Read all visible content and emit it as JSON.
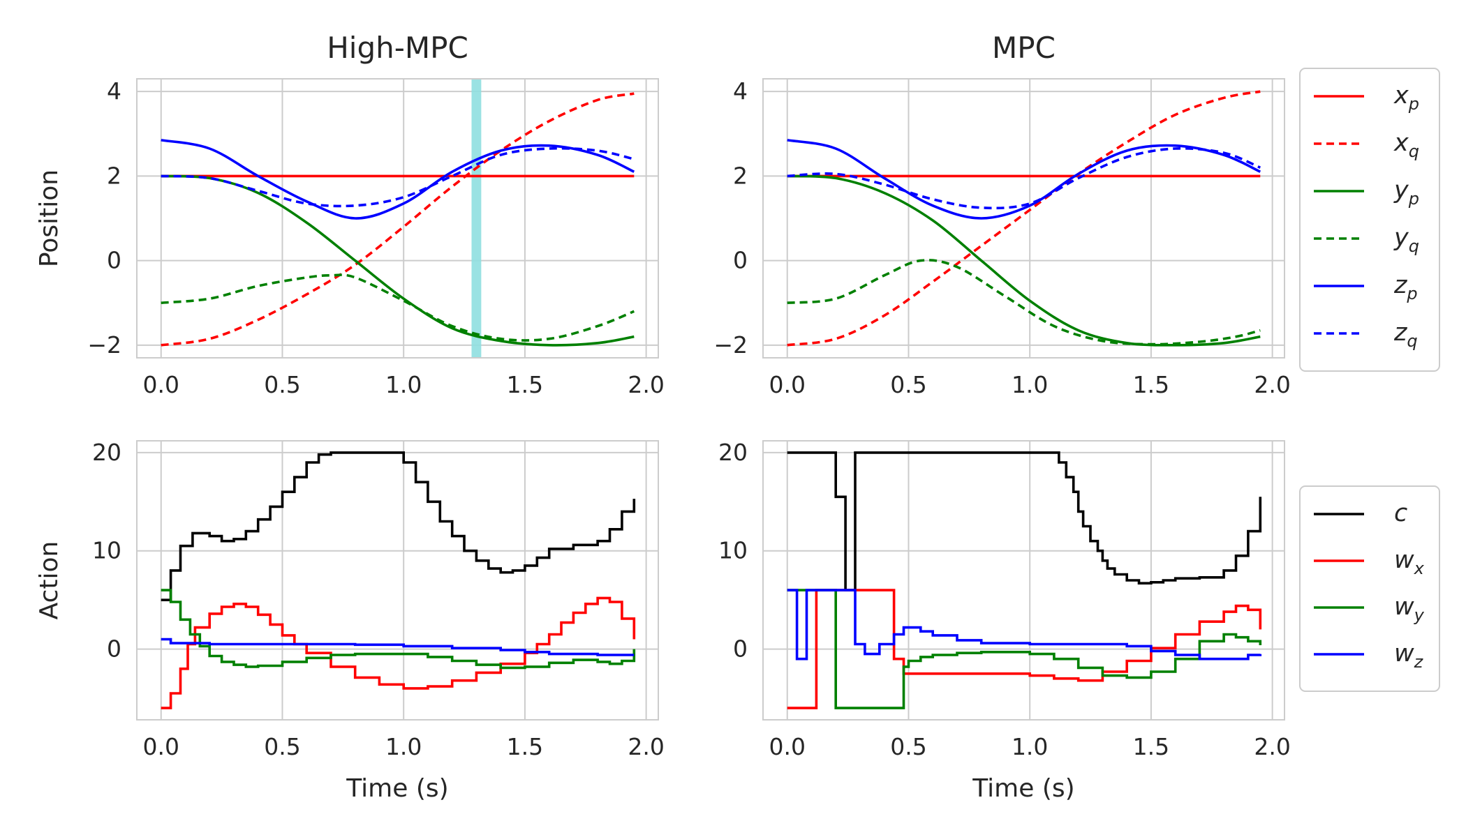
{
  "chart_data": [
    {
      "id": "pos_high",
      "type": "line",
      "title": "High-MPC",
      "xlabel": "",
      "ylabel": "Position",
      "xlim": [
        -0.1,
        2.05
      ],
      "ylim": [
        -2.3,
        4.3
      ],
      "xticks": [
        "0.0",
        "0.5",
        "1.0",
        "1.5",
        "2.0"
      ],
      "yticks": [
        "4",
        "2",
        "0",
        "−2"
      ],
      "highlight_band": {
        "x0": 1.28,
        "x1": 1.32,
        "color": "#8fdfe0"
      },
      "series": [
        {
          "name": "x_p",
          "color": "#ff0000",
          "dash": false,
          "x": [
            0,
            0.5,
            1.0,
            1.5,
            1.95
          ],
          "y": [
            2,
            2,
            2,
            2,
            2
          ]
        },
        {
          "name": "x_q",
          "color": "#ff0000",
          "dash": true,
          "x": [
            0,
            0.2,
            0.4,
            0.6,
            0.8,
            1.0,
            1.2,
            1.4,
            1.6,
            1.8,
            1.95
          ],
          "y": [
            -2,
            -1.85,
            -1.4,
            -0.8,
            -0.1,
            0.8,
            1.75,
            2.6,
            3.3,
            3.8,
            3.95
          ]
        },
        {
          "name": "y_p",
          "color": "#008000",
          "dash": false,
          "x": [
            0,
            0.2,
            0.4,
            0.6,
            0.8,
            1.0,
            1.2,
            1.4,
            1.6,
            1.8,
            1.95
          ],
          "y": [
            2,
            1.95,
            1.6,
            0.9,
            0.0,
            -0.9,
            -1.6,
            -1.9,
            -2.0,
            -1.95,
            -1.8
          ]
        },
        {
          "name": "y_q",
          "color": "#008000",
          "dash": true,
          "x": [
            0,
            0.2,
            0.4,
            0.6,
            0.7,
            0.8,
            1.0,
            1.2,
            1.4,
            1.6,
            1.8,
            1.95
          ],
          "y": [
            -1,
            -0.9,
            -0.6,
            -0.4,
            -0.35,
            -0.4,
            -0.95,
            -1.55,
            -1.85,
            -1.85,
            -1.55,
            -1.2
          ]
        },
        {
          "name": "z_p",
          "color": "#0000ff",
          "dash": false,
          "x": [
            0,
            0.2,
            0.4,
            0.6,
            0.8,
            1.0,
            1.2,
            1.4,
            1.6,
            1.8,
            1.95
          ],
          "y": [
            2.85,
            2.65,
            2.0,
            1.4,
            1.0,
            1.35,
            2.1,
            2.6,
            2.72,
            2.5,
            2.1
          ]
        },
        {
          "name": "z_q",
          "color": "#0000ff",
          "dash": true,
          "x": [
            0,
            0.2,
            0.4,
            0.6,
            0.8,
            1.0,
            1.2,
            1.4,
            1.6,
            1.8,
            1.95
          ],
          "y": [
            2,
            1.95,
            1.65,
            1.35,
            1.3,
            1.5,
            2.0,
            2.5,
            2.65,
            2.6,
            2.4
          ]
        }
      ]
    },
    {
      "id": "pos_mpc",
      "type": "line",
      "title": "MPC",
      "xlabel": "",
      "ylabel": "",
      "xlim": [
        -0.1,
        2.05
      ],
      "ylim": [
        -2.3,
        4.3
      ],
      "xticks": [
        "0.0",
        "0.5",
        "1.0",
        "1.5",
        "2.0"
      ],
      "yticks": [
        "4",
        "2",
        "0",
        "−2"
      ],
      "series": [
        {
          "name": "x_p",
          "color": "#ff0000",
          "dash": false,
          "x": [
            0,
            0.5,
            1.0,
            1.5,
            1.95
          ],
          "y": [
            2,
            2,
            2,
            2,
            2
          ]
        },
        {
          "name": "x_q",
          "color": "#ff0000",
          "dash": true,
          "x": [
            0,
            0.2,
            0.4,
            0.6,
            0.8,
            1.0,
            1.2,
            1.4,
            1.6,
            1.8,
            1.95
          ],
          "y": [
            -2,
            -1.85,
            -1.3,
            -0.5,
            0.35,
            1.2,
            2.05,
            2.8,
            3.45,
            3.85,
            4.0
          ]
        },
        {
          "name": "y_p",
          "color": "#008000",
          "dash": false,
          "x": [
            0,
            0.2,
            0.4,
            0.6,
            0.8,
            1.0,
            1.2,
            1.4,
            1.6,
            1.8,
            1.95
          ],
          "y": [
            2,
            1.95,
            1.6,
            0.95,
            0.0,
            -0.95,
            -1.65,
            -1.95,
            -2.0,
            -1.95,
            -1.8
          ]
        },
        {
          "name": "y_q",
          "color": "#008000",
          "dash": true,
          "x": [
            0,
            0.2,
            0.4,
            0.55,
            0.7,
            0.9,
            1.1,
            1.3,
            1.5,
            1.7,
            1.85,
            1.95
          ],
          "y": [
            -1,
            -0.9,
            -0.35,
            0.0,
            -0.15,
            -0.85,
            -1.55,
            -1.9,
            -1.98,
            -1.92,
            -1.8,
            -1.65
          ]
        },
        {
          "name": "z_p",
          "color": "#0000ff",
          "dash": false,
          "x": [
            0,
            0.2,
            0.4,
            0.6,
            0.8,
            1.0,
            1.2,
            1.4,
            1.6,
            1.8,
            1.95
          ],
          "y": [
            2.85,
            2.65,
            1.95,
            1.3,
            1.0,
            1.3,
            2.05,
            2.6,
            2.72,
            2.5,
            2.1
          ]
        },
        {
          "name": "z_q",
          "color": "#0000ff",
          "dash": true,
          "x": [
            0,
            0.2,
            0.4,
            0.6,
            0.8,
            1.0,
            1.2,
            1.4,
            1.6,
            1.8,
            1.95
          ],
          "y": [
            2,
            2.05,
            1.8,
            1.45,
            1.25,
            1.35,
            1.95,
            2.45,
            2.65,
            2.55,
            2.2
          ]
        }
      ]
    },
    {
      "id": "act_high",
      "type": "step",
      "title": "",
      "xlabel": "Time (s)",
      "ylabel": "Action",
      "xlim": [
        -0.1,
        2.05
      ],
      "ylim": [
        -7.2,
        21.2
      ],
      "xticks": [
        "0.0",
        "0.5",
        "1.0",
        "1.5",
        "2.0"
      ],
      "yticks": [
        "20",
        "10",
        "0"
      ],
      "series": [
        {
          "name": "c",
          "color": "#000000",
          "x": [
            0,
            0.04,
            0.08,
            0.13,
            0.2,
            0.25,
            0.3,
            0.35,
            0.4,
            0.45,
            0.5,
            0.55,
            0.6,
            0.65,
            0.7,
            0.8,
            0.9,
            1.0,
            1.05,
            1.1,
            1.15,
            1.2,
            1.25,
            1.3,
            1.35,
            1.4,
            1.45,
            1.5,
            1.55,
            1.6,
            1.7,
            1.8,
            1.85,
            1.9,
            1.95
          ],
          "y": [
            5,
            8,
            10.5,
            11.8,
            11.5,
            11,
            11.2,
            12,
            13.2,
            14.5,
            16,
            17.5,
            19,
            19.8,
            20,
            20,
            20,
            19,
            17,
            15,
            13,
            11.5,
            10,
            9,
            8.2,
            7.8,
            8,
            8.5,
            9.3,
            10.2,
            10.6,
            11,
            12.2,
            14,
            15.3
          ]
        },
        {
          "name": "w_x",
          "color": "#ff0000",
          "x": [
            0,
            0.04,
            0.08,
            0.11,
            0.14,
            0.2,
            0.25,
            0.3,
            0.35,
            0.4,
            0.45,
            0.5,
            0.55,
            0.6,
            0.7,
            0.8,
            0.9,
            1.0,
            1.05,
            1.1,
            1.2,
            1.3,
            1.4,
            1.5,
            1.55,
            1.6,
            1.65,
            1.7,
            1.75,
            1.8,
            1.85,
            1.9,
            1.95
          ],
          "y": [
            -6,
            -4.5,
            -2,
            0.5,
            2.2,
            3.6,
            4.3,
            4.6,
            4.3,
            3.5,
            2.5,
            1.4,
            0.5,
            -0.4,
            -1.8,
            -2.9,
            -3.6,
            -4,
            -4,
            -3.8,
            -3.2,
            -2.4,
            -1.5,
            -0.4,
            0.5,
            1.5,
            2.7,
            3.7,
            4.6,
            5.2,
            4.8,
            3.1,
            1
          ]
        },
        {
          "name": "w_y",
          "color": "#008000",
          "x": [
            0,
            0.04,
            0.08,
            0.12,
            0.16,
            0.2,
            0.25,
            0.3,
            0.35,
            0.4,
            0.5,
            0.6,
            0.7,
            0.8,
            0.9,
            1.0,
            1.1,
            1.2,
            1.3,
            1.4,
            1.5,
            1.6,
            1.7,
            1.8,
            1.85,
            1.9,
            1.95
          ],
          "y": [
            6,
            4.8,
            3,
            1.5,
            0.3,
            -0.7,
            -1.3,
            -1.6,
            -1.8,
            -1.7,
            -1.3,
            -0.9,
            -0.6,
            -0.5,
            -0.5,
            -0.5,
            -0.8,
            -1.2,
            -1.6,
            -1.9,
            -1.8,
            -1.4,
            -1.1,
            -1.3,
            -1.5,
            -1.2,
            0
          ]
        },
        {
          "name": "w_z",
          "color": "#0000ff",
          "x": [
            0,
            0.04,
            0.2,
            0.4,
            0.6,
            0.8,
            1.0,
            1.2,
            1.4,
            1.5,
            1.6,
            1.8,
            1.95
          ],
          "y": [
            1,
            0.6,
            0.5,
            0.5,
            0.5,
            0.45,
            0.3,
            0.1,
            -0.1,
            -0.3,
            -0.5,
            -0.6,
            -0.6
          ]
        }
      ]
    },
    {
      "id": "act_mpc",
      "type": "step",
      "title": "",
      "xlabel": "Time (s)",
      "ylabel": "",
      "xlim": [
        -0.1,
        2.05
      ],
      "ylim": [
        -7.2,
        21.2
      ],
      "xticks": [
        "0.0",
        "0.5",
        "1.0",
        "1.5",
        "2.0"
      ],
      "yticks": [
        "20",
        "10",
        "0"
      ],
      "series": [
        {
          "name": "c",
          "color": "#000000",
          "x": [
            0,
            0.2,
            0.24,
            0.28,
            0.32,
            0.4,
            0.6,
            0.8,
            1.0,
            1.12,
            1.15,
            1.18,
            1.2,
            1.22,
            1.25,
            1.28,
            1.3,
            1.32,
            1.35,
            1.4,
            1.45,
            1.5,
            1.55,
            1.6,
            1.7,
            1.8,
            1.85,
            1.9,
            1.95
          ],
          "y": [
            20,
            15.5,
            6,
            20,
            20,
            20,
            20,
            20,
            20,
            19,
            17.5,
            16,
            14,
            12.5,
            11,
            10,
            9,
            8.2,
            7.6,
            7,
            6.7,
            6.8,
            7,
            7.2,
            7.3,
            8,
            9.5,
            12,
            15.5
          ]
        },
        {
          "name": "w_x",
          "color": "#ff0000",
          "x": [
            0,
            0.12,
            0.44,
            0.48,
            0.6,
            0.8,
            0.9,
            1.0,
            1.1,
            1.2,
            1.3,
            1.4,
            1.5,
            1.6,
            1.7,
            1.8,
            1.85,
            1.9,
            1.95
          ],
          "y": [
            -6,
            6,
            -1,
            -2.5,
            -2.5,
            -2.5,
            -2.5,
            -2.7,
            -3,
            -3.2,
            -2.3,
            -1.2,
            0.1,
            1.5,
            2.8,
            3.8,
            4.4,
            4,
            2
          ]
        },
        {
          "name": "w_y",
          "color": "#008000",
          "x": [
            0,
            0.2,
            0.48,
            0.5,
            0.55,
            0.6,
            0.7,
            0.8,
            0.9,
            1.0,
            1.1,
            1.2,
            1.3,
            1.4,
            1.5,
            1.6,
            1.7,
            1.8,
            1.85,
            1.9,
            1.95
          ],
          "y": [
            6,
            -6,
            -1.8,
            -1.2,
            -0.8,
            -0.6,
            -0.4,
            -0.3,
            -0.3,
            -0.5,
            -1,
            -1.9,
            -2.7,
            -2.9,
            -2.3,
            -1,
            0.8,
            1.5,
            1.2,
            0.8,
            0.4
          ]
        },
        {
          "name": "w_z",
          "color": "#0000ff",
          "x": [
            0,
            0.04,
            0.08,
            0.12,
            0.28,
            0.32,
            0.38,
            0.44,
            0.48,
            0.55,
            0.6,
            0.7,
            0.8,
            1.0,
            1.2,
            1.4,
            1.5,
            1.6,
            1.7,
            1.8,
            1.9,
            1.95
          ],
          "y": [
            6,
            -1,
            6,
            6,
            0.5,
            -0.5,
            0.5,
            1.5,
            2.2,
            1.8,
            1.4,
            0.9,
            0.6,
            0.5,
            0.5,
            0.3,
            -0.2,
            -0.6,
            -1,
            -1,
            -0.6,
            -0.5
          ]
        }
      ]
    }
  ],
  "legends": {
    "position": [
      {
        "base": "x",
        "sub": "p",
        "color": "#ff0000",
        "dash": false
      },
      {
        "base": "x",
        "sub": "q",
        "color": "#ff0000",
        "dash": true
      },
      {
        "base": "y",
        "sub": "p",
        "color": "#008000",
        "dash": false
      },
      {
        "base": "y",
        "sub": "q",
        "color": "#008000",
        "dash": true
      },
      {
        "base": "z",
        "sub": "p",
        "color": "#0000ff",
        "dash": false
      },
      {
        "base": "z",
        "sub": "q",
        "color": "#0000ff",
        "dash": true
      }
    ],
    "action": [
      {
        "base": "c",
        "sub": "",
        "color": "#000000",
        "dash": false
      },
      {
        "base": "w",
        "sub": "x",
        "color": "#ff0000",
        "dash": false
      },
      {
        "base": "w",
        "sub": "y",
        "color": "#008000",
        "dash": false
      },
      {
        "base": "w",
        "sub": "z",
        "color": "#0000ff",
        "dash": false
      }
    ]
  }
}
